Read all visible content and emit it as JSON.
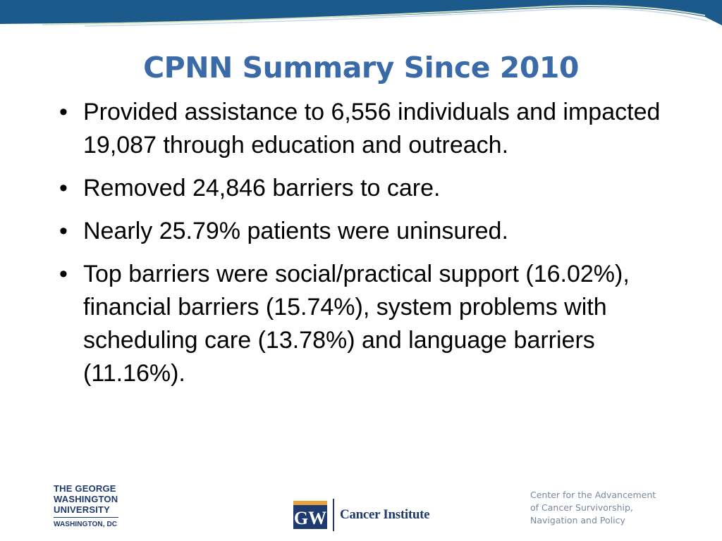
{
  "slide": {
    "title": "CPNN Summary Since 2010",
    "bullet_symbol": "•",
    "bullets": [
      "Provided assistance to 6,556 individuals and impacted 19,087 through education and outreach.",
      "Removed 24,846 barriers to care.",
      "Nearly 25.79% patients were uninsured.",
      "Top barriers were social/practical support (16.02%), financial barriers (15.74%), system problems with scheduling care (13.78%) and language barriers (11.16%)."
    ]
  },
  "footer": {
    "gwu_logo": {
      "lines": [
        "THE GEORGE",
        "WASHINGTON",
        "UNIVERSITY"
      ],
      "city": "WASHINGTON, DC"
    },
    "cancer_institute_logo": {
      "mark": "GW",
      "text": "Cancer Institute"
    },
    "center_name": [
      "Center for the Advancement",
      "of Cancer Survivorship,",
      "Navigation and Policy"
    ]
  },
  "colors": {
    "banner_blue": "#1d5a8c",
    "title_blue": "#3b6aa8",
    "logo_navy": "#1f3a6e",
    "gw_gold": "#e8a33d",
    "footer_gray": "#7a8899"
  }
}
